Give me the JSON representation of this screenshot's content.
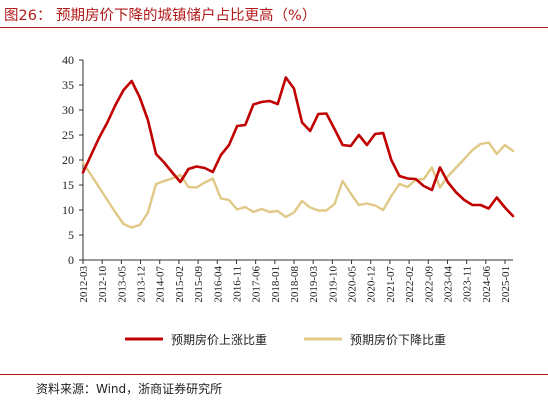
{
  "title": "图26：  预期房价下降的城镇储户占比更高（%）",
  "source": "资料来源：Wind，浙商证券研究所",
  "chart_data": {
    "type": "line",
    "ylim": [
      0,
      40
    ],
    "yticks": [
      0,
      5,
      10,
      15,
      20,
      25,
      30,
      35,
      40
    ],
    "xtick_labels": [
      "2012-03",
      "2012-10",
      "2013-05",
      "2013-12",
      "2014-07",
      "2015-02",
      "2015-09",
      "2016-04",
      "2016-11",
      "2017-06",
      "2018-01",
      "2018-08",
      "2019-03",
      "2019-10",
      "2020-05",
      "2020-12",
      "2021-07",
      "2022-02",
      "2022-09",
      "2023-04",
      "2023-11",
      "2024-06",
      "2025-01"
    ],
    "quarters": [
      "2012Q1",
      "2012Q2",
      "2012Q3",
      "2012Q4",
      "2013Q1",
      "2013Q2",
      "2013Q3",
      "2013Q4",
      "2014Q1",
      "2014Q2",
      "2014Q3",
      "2014Q4",
      "2015Q1",
      "2015Q2",
      "2015Q3",
      "2015Q4",
      "2016Q1",
      "2016Q2",
      "2016Q3",
      "2016Q4",
      "2017Q1",
      "2017Q2",
      "2017Q3",
      "2017Q4",
      "2018Q1",
      "2018Q2",
      "2018Q3",
      "2018Q4",
      "2019Q1",
      "2019Q2",
      "2019Q3",
      "2019Q4",
      "2020Q1",
      "2020Q2",
      "2020Q3",
      "2020Q4",
      "2021Q1",
      "2021Q2",
      "2021Q3",
      "2021Q4",
      "2022Q1",
      "2022Q2",
      "2022Q3",
      "2022Q4",
      "2023Q1",
      "2023Q2",
      "2023Q3",
      "2023Q4",
      "2024Q1",
      "2024Q2",
      "2024Q3",
      "2024Q4",
      "2025Q1",
      "2025Q2"
    ],
    "series": [
      {
        "name": "预期房价上涨比重",
        "color": "#c00000",
        "values": [
          17.5,
          21.0,
          24.5,
          27.5,
          31.0,
          34.0,
          35.8,
          32.5,
          28.0,
          21.2,
          19.5,
          17.5,
          15.6,
          18.2,
          18.7,
          18.4,
          17.6,
          21.0,
          23.0,
          26.8,
          27.0,
          31.1,
          31.6,
          31.8,
          31.2,
          36.5,
          34.3,
          27.5,
          25.8,
          29.2,
          29.3,
          26.2,
          23.0,
          22.8,
          25.0,
          23.0,
          25.2,
          25.4,
          20.0,
          16.8,
          16.3,
          16.2,
          14.8,
          14.0,
          18.5,
          15.5,
          13.5,
          12.0,
          11.0,
          11.0,
          10.3,
          12.5,
          10.5,
          8.8
        ]
      },
      {
        "name": "预期房价下降比重",
        "color": "#e0c887",
        "values": [
          19.5,
          17.0,
          14.5,
          12.0,
          9.5,
          7.2,
          6.5,
          7.0,
          9.5,
          15.2,
          15.8,
          16.3,
          17.0,
          14.6,
          14.5,
          15.5,
          16.3,
          12.3,
          12.0,
          10.1,
          10.6,
          9.6,
          10.2,
          9.6,
          9.8,
          8.6,
          9.5,
          11.8,
          10.5,
          9.9,
          9.9,
          11.2,
          15.8,
          13.3,
          11.0,
          11.3,
          10.9,
          10.0,
          12.8,
          15.2,
          14.6,
          16.0,
          16.2,
          18.5,
          14.5,
          16.8,
          18.5,
          20.2,
          22.0,
          23.2,
          23.5,
          21.2,
          23.0,
          21.8
        ]
      }
    ]
  }
}
